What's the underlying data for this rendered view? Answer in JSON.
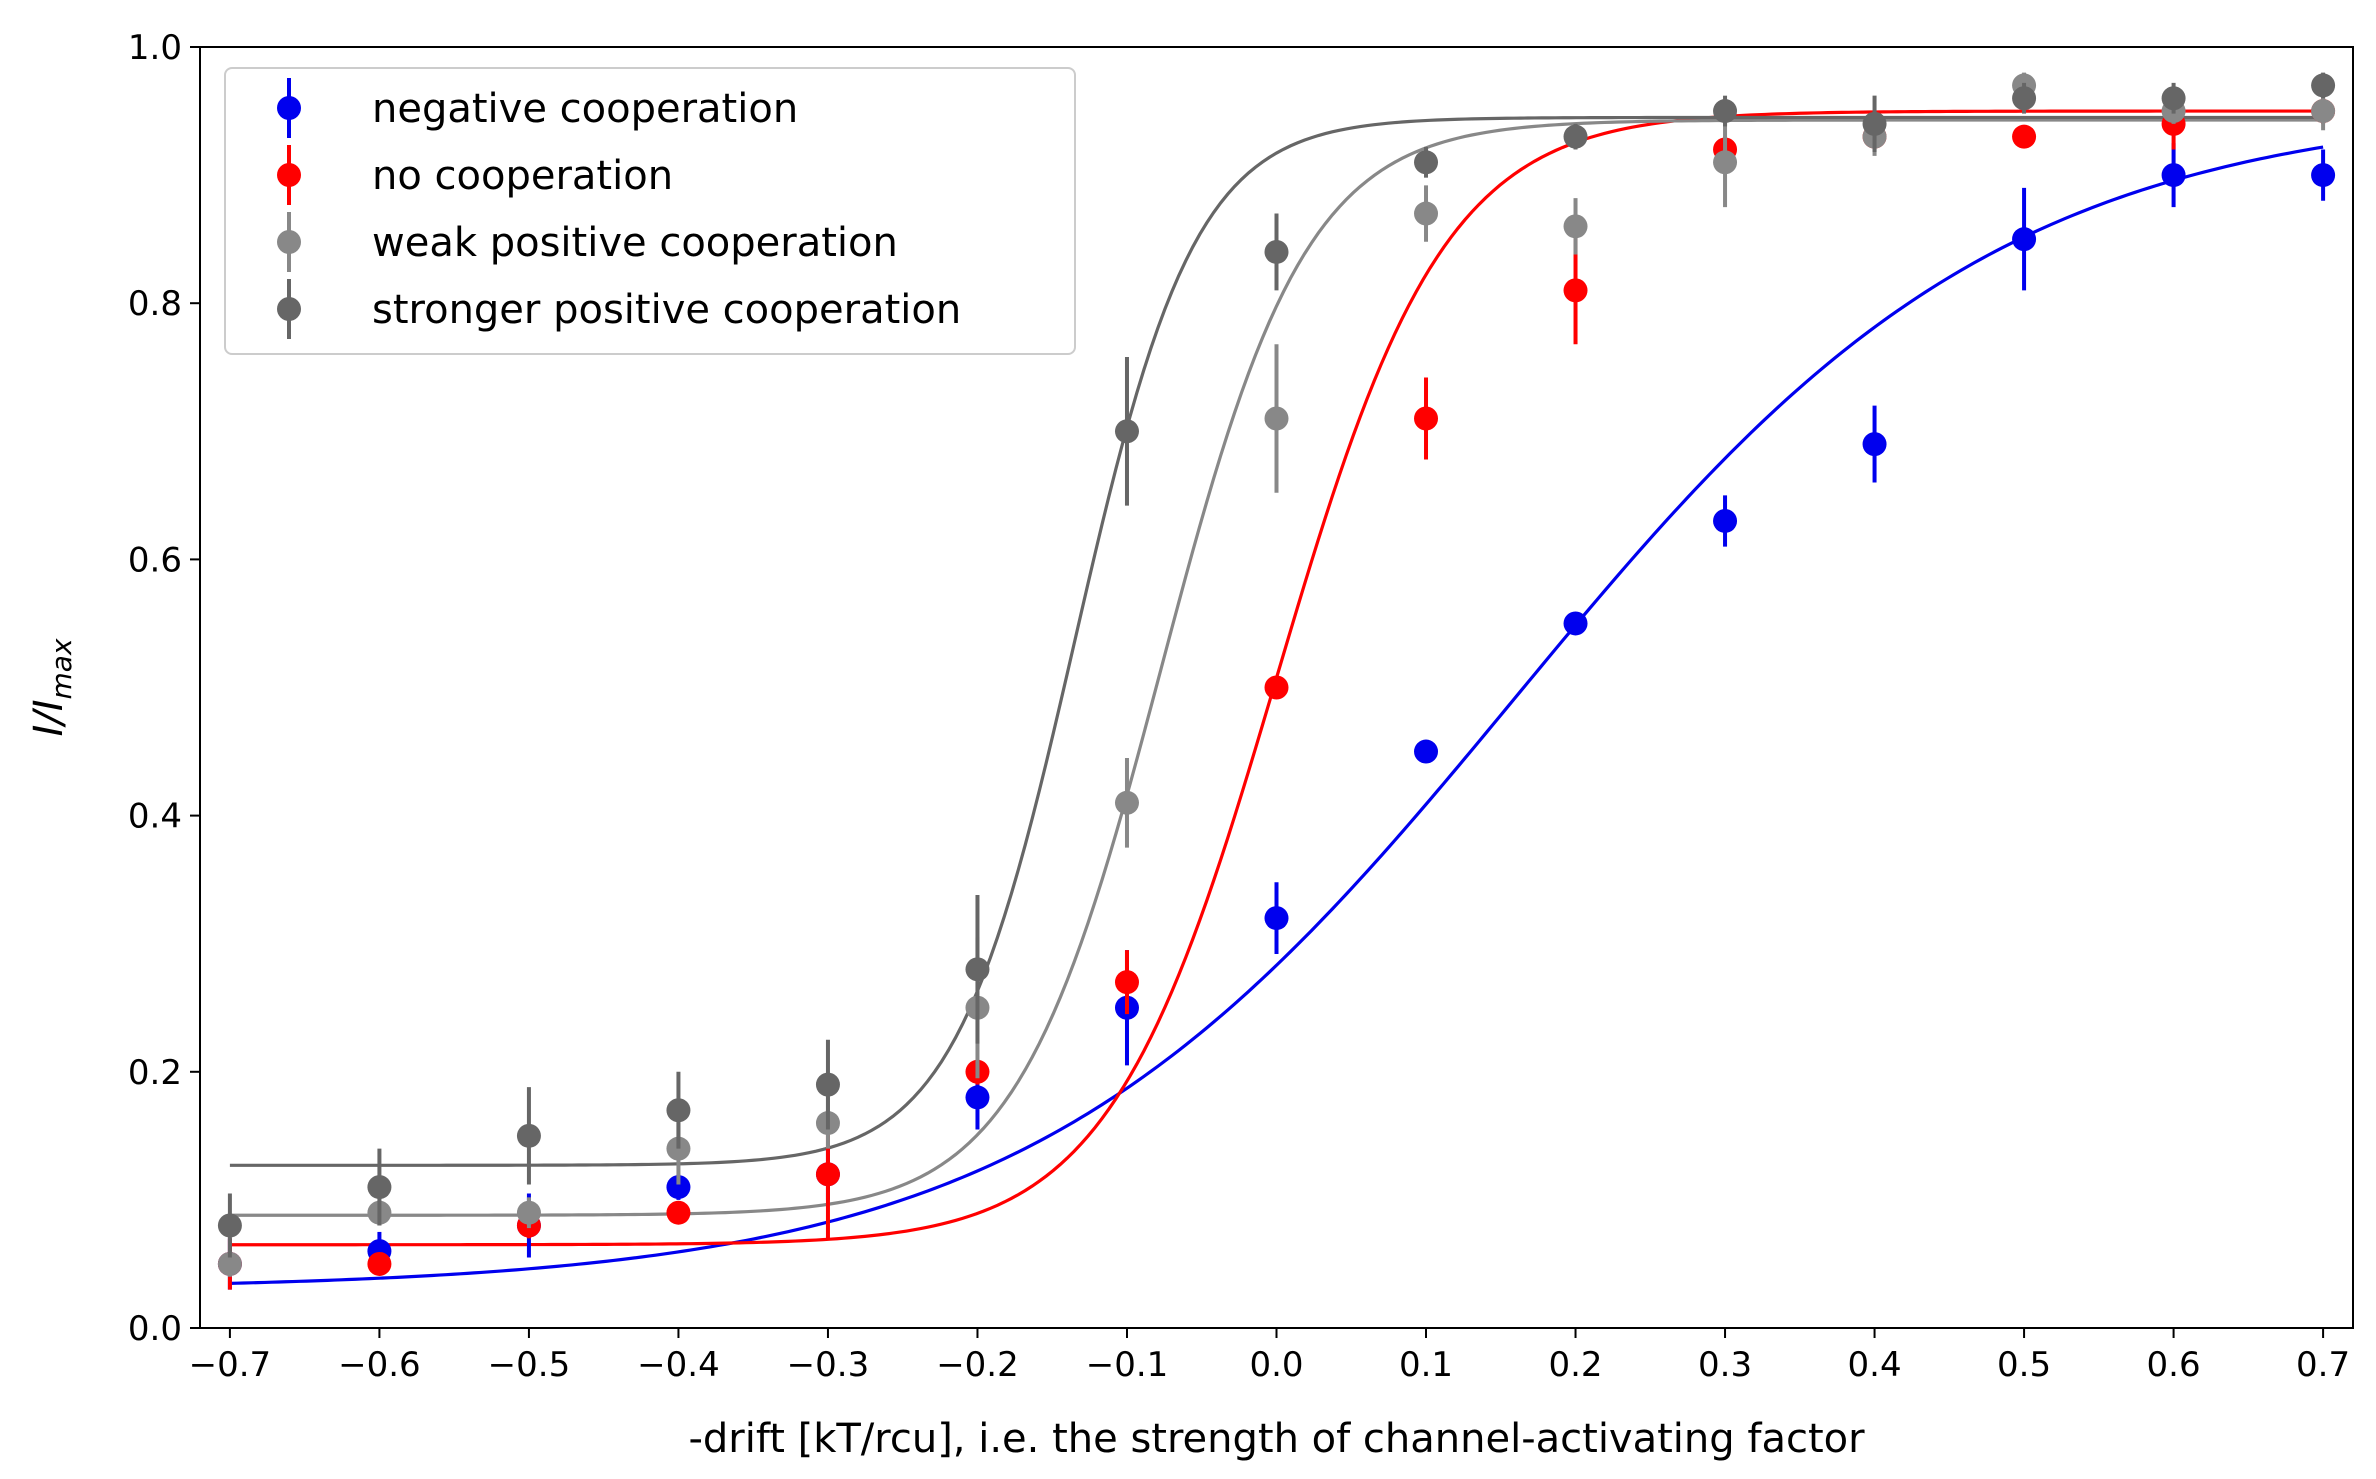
{
  "chart_data": {
    "type": "scatter",
    "title": "",
    "xlabel": "-drift [kT/rcu], i.e. the strength of channel-activating factor",
    "ylabel_main": "I/I",
    "ylabel_sub": "max",
    "xlim": [
      -0.72,
      0.72
    ],
    "ylim": [
      0.0,
      1.0
    ],
    "x_ticks": [
      -0.7,
      -0.6,
      -0.5,
      -0.4,
      -0.3,
      -0.2,
      -0.1,
      0.0,
      0.1,
      0.2,
      0.3,
      0.4,
      0.5,
      0.6,
      0.7
    ],
    "x_tick_labels": [
      "−0.7",
      "−0.6",
      "−0.5",
      "−0.4",
      "−0.3",
      "−0.2",
      "−0.1",
      "0.0",
      "0.1",
      "0.2",
      "0.3",
      "0.4",
      "0.5",
      "0.6",
      "0.7"
    ],
    "y_ticks": [
      0.0,
      0.2,
      0.4,
      0.6,
      0.8,
      1.0
    ],
    "y_tick_labels": [
      "0.0",
      "0.2",
      "0.4",
      "0.6",
      "0.8",
      "1.0"
    ],
    "grid": false,
    "legend_position": "top-left",
    "x": [
      -0.7,
      -0.6,
      -0.5,
      -0.4,
      -0.3,
      -0.2,
      -0.1,
      0.0,
      0.1,
      0.2,
      0.3,
      0.4,
      0.5,
      0.6,
      0.7
    ],
    "series": [
      {
        "name": "negative cooperation",
        "color": "#0000ee",
        "y": [
          0.05,
          0.06,
          0.08,
          0.11,
          0.12,
          0.18,
          0.25,
          0.32,
          0.45,
          0.55,
          0.63,
          0.69,
          0.85,
          0.9,
          0.9
        ],
        "yerr": [
          0.02,
          0.015,
          0.025,
          0.01,
          0.02,
          0.025,
          0.045,
          0.028,
          0.008,
          0.008,
          0.02,
          0.03,
          0.04,
          0.025,
          0.02
        ],
        "fit": {
          "bottom": 0.03,
          "top": 0.955,
          "x0": 0.16,
          "k": 6.1
        }
      },
      {
        "name": "no cooperation",
        "color": "#ff0000",
        "y": [
          0.05,
          0.05,
          0.08,
          0.09,
          0.12,
          0.2,
          0.27,
          0.5,
          0.71,
          0.81,
          0.92,
          0.93,
          0.93,
          0.94,
          0.95
        ],
        "yerr": [
          0.02,
          0.008,
          0.01,
          0.008,
          0.05,
          0.01,
          0.025,
          0.008,
          0.032,
          0.042,
          0.01,
          0.008,
          0.008,
          0.02,
          0.01
        ],
        "fit": {
          "bottom": 0.065,
          "top": 0.95,
          "x0": 0.0,
          "k": 17.8
        }
      },
      {
        "name": "weak positive cooperation",
        "color": "#888888",
        "y": [
          0.05,
          0.09,
          0.09,
          0.14,
          0.16,
          0.25,
          0.41,
          0.71,
          0.87,
          0.86,
          0.91,
          0.93,
          0.97,
          0.95,
          0.95
        ],
        "yerr": [
          0.01,
          0.01,
          0.012,
          0.028,
          0.02,
          0.055,
          0.035,
          0.058,
          0.022,
          0.022,
          0.035,
          0.015,
          0.01,
          0.01,
          0.015
        ],
        "fit": {
          "bottom": 0.088,
          "top": 0.943,
          "x0": -0.077,
          "k": 20.6
        }
      },
      {
        "name": "stronger positive cooperation",
        "color": "#666666",
        "y": [
          0.08,
          0.11,
          0.15,
          0.17,
          0.19,
          0.28,
          0.7,
          0.84,
          0.91,
          0.93,
          0.95,
          0.94,
          0.96,
          0.96,
          0.97
        ],
        "yerr": [
          0.025,
          0.03,
          0.038,
          0.03,
          0.035,
          0.058,
          0.058,
          0.03,
          0.012,
          0.01,
          0.012,
          0.022,
          0.012,
          0.012,
          0.01
        ],
        "fit": {
          "bottom": 0.127,
          "top": 0.945,
          "x0": -0.135,
          "k": 24.8
        }
      }
    ]
  }
}
